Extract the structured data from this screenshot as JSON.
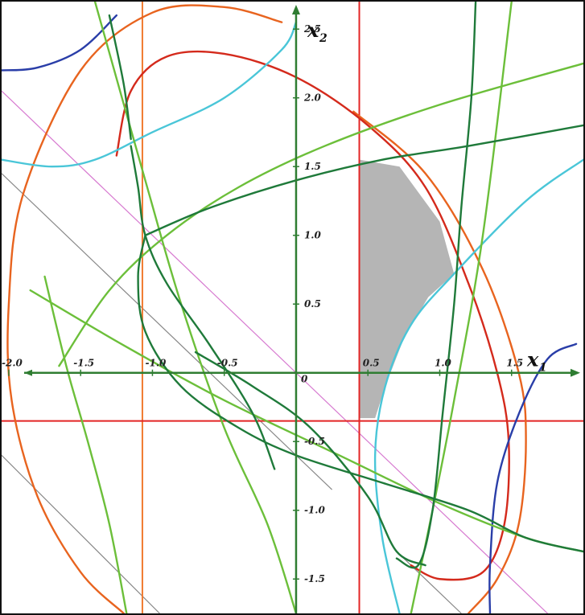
{
  "chart_data": {
    "type": "line",
    "xlabel": "x",
    "xlabel_sub": "1",
    "ylabel": "x",
    "ylabel_sub": "2",
    "xlim": [
      -2.05,
      2.0
    ],
    "ylim": [
      -1.75,
      2.7
    ],
    "x_ticks": [
      "-2.0",
      "-1.5",
      "-1.0",
      "-0.5",
      "0.5",
      "1.0",
      "1.5"
    ],
    "y_ticks": [
      "2.5",
      "2.0",
      "1.5",
      "1.0",
      "0.5",
      "-0.5",
      "-1.0",
      "-1.5"
    ],
    "origin_label": "0",
    "feasible_region": {
      "color": "#b5b5b5",
      "vertices": [
        [
          0.44,
          -0.33
        ],
        [
          0.44,
          1.55
        ],
        [
          0.72,
          1.5
        ],
        [
          1.0,
          1.1
        ],
        [
          1.1,
          0.72
        ],
        [
          0.92,
          0.55
        ],
        [
          0.75,
          0.25
        ],
        [
          0.62,
          -0.1
        ],
        [
          0.55,
          -0.33
        ]
      ]
    },
    "vertical_lines": [
      {
        "x": -1.07,
        "color": "#f07a30"
      },
      {
        "x": 0.44,
        "color": "#e32525"
      }
    ],
    "horizontal_lines": [
      {
        "y": -0.35,
        "color": "#e32525"
      }
    ],
    "diagonal_lines": [
      {
        "color": "#d77ad0",
        "points": [
          [
            -2.05,
            2.05
          ],
          [
            1.85,
            -1.85
          ]
        ]
      },
      {
        "color": "#888888",
        "points": [
          [
            -2.05,
            1.45
          ],
          [
            0.25,
            -0.85
          ]
        ]
      },
      {
        "color": "#888888",
        "points": [
          [
            -2.05,
            -0.6
          ],
          [
            -0.95,
            -1.75
          ]
        ]
      },
      {
        "color": "#888888",
        "points": [
          [
            0.7,
            -1.3
          ],
          [
            1.15,
            -1.75
          ]
        ]
      }
    ],
    "series": [
      {
        "color": "#e8641f",
        "points": [
          [
            -0.1,
            2.55
          ],
          [
            -0.5,
            2.66
          ],
          [
            -1.0,
            2.62
          ],
          [
            -1.5,
            2.2
          ],
          [
            -1.9,
            1.3
          ],
          [
            -2.0,
            0.5
          ],
          [
            -1.98,
            -0.2
          ],
          [
            -1.8,
            -0.9
          ],
          [
            -1.5,
            -1.45
          ],
          [
            -1.2,
            -1.75
          ]
        ]
      },
      {
        "color": "#e8641f",
        "points": [
          [
            0.4,
            1.9
          ],
          [
            0.9,
            1.45
          ],
          [
            1.3,
            0.75
          ],
          [
            1.55,
            0.0
          ],
          [
            1.6,
            -0.5
          ],
          [
            1.55,
            -1.1
          ],
          [
            1.4,
            -1.5
          ],
          [
            1.2,
            -1.75
          ]
        ]
      },
      {
        "color": "#d42a1c",
        "points": [
          [
            -1.25,
            1.58
          ],
          [
            -1.15,
            2.05
          ],
          [
            -0.9,
            2.3
          ],
          [
            -0.5,
            2.32
          ],
          [
            0.0,
            2.15
          ],
          [
            0.5,
            1.8
          ],
          [
            0.9,
            1.35
          ],
          [
            1.2,
            0.65
          ],
          [
            1.4,
            0.0
          ],
          [
            1.48,
            -0.5
          ],
          [
            1.45,
            -1.1
          ],
          [
            1.3,
            -1.45
          ],
          [
            1.0,
            -1.5
          ],
          [
            0.8,
            -1.4
          ]
        ]
      },
      {
        "color": "#2a3ea8",
        "points": [
          [
            -2.05,
            2.2
          ],
          [
            -1.8,
            2.22
          ],
          [
            -1.5,
            2.35
          ],
          [
            -1.25,
            2.6
          ]
        ]
      },
      {
        "color": "#2a3ea8",
        "points": [
          [
            1.95,
            0.21
          ],
          [
            1.75,
            0.1
          ],
          [
            1.55,
            -0.3
          ],
          [
            1.4,
            -0.8
          ],
          [
            1.35,
            -1.4
          ],
          [
            1.35,
            -1.75
          ]
        ]
      },
      {
        "color": "#4ac6d8",
        "points": [
          [
            -2.05,
            1.55
          ],
          [
            -1.7,
            1.5
          ],
          [
            -1.4,
            1.55
          ],
          [
            -1.0,
            1.75
          ],
          [
            -0.5,
            2.0
          ],
          [
            -0.1,
            2.35
          ],
          [
            0.0,
            2.55
          ]
        ]
      },
      {
        "color": "#4ac6d8",
        "points": [
          [
            2.0,
            1.55
          ],
          [
            1.6,
            1.25
          ],
          [
            1.1,
            0.72
          ],
          [
            0.8,
            0.35
          ],
          [
            0.62,
            -0.1
          ],
          [
            0.55,
            -0.6
          ],
          [
            0.6,
            -1.2
          ],
          [
            0.72,
            -1.75
          ]
        ]
      },
      {
        "color": "#6cbf3a",
        "points": [
          [
            -1.75,
            0.7
          ],
          [
            -1.6,
            0.05
          ],
          [
            -1.45,
            -0.5
          ],
          [
            -1.3,
            -1.1
          ],
          [
            -1.18,
            -1.75
          ]
        ]
      },
      {
        "color": "#6cbf3a",
        "points": [
          [
            -1.65,
            0.05
          ],
          [
            -1.3,
            0.6
          ],
          [
            -0.9,
            1.0
          ],
          [
            -0.4,
            1.35
          ],
          [
            0.2,
            1.65
          ],
          [
            1.0,
            1.95
          ],
          [
            2.0,
            2.25
          ]
        ]
      },
      {
        "color": "#6cbf3a",
        "points": [
          [
            -1.85,
            0.6
          ],
          [
            -1.2,
            0.2
          ],
          [
            -0.5,
            -0.2
          ],
          [
            0.3,
            -0.6
          ],
          [
            1.0,
            -0.95
          ],
          [
            1.6,
            -1.2
          ],
          [
            2.0,
            -1.3
          ]
        ]
      },
      {
        "color": "#6cbf3a",
        "points": [
          [
            -1.4,
            2.7
          ],
          [
            -1.05,
            1.4
          ],
          [
            -0.8,
            0.5
          ],
          [
            -0.5,
            -0.4
          ],
          [
            -0.2,
            -1.1
          ],
          [
            0.0,
            -1.75
          ]
        ]
      },
      {
        "color": "#6cbf3a",
        "points": [
          [
            1.5,
            2.7
          ],
          [
            1.3,
            1.0
          ],
          [
            1.1,
            -0.2
          ],
          [
            0.95,
            -1.0
          ],
          [
            0.8,
            -1.75
          ]
        ]
      },
      {
        "color": "#1f7a3a",
        "points": [
          [
            -1.05,
            1.0
          ],
          [
            -0.6,
            1.2
          ],
          [
            0.0,
            1.4
          ],
          [
            0.6,
            1.55
          ],
          [
            1.2,
            1.65
          ],
          [
            2.0,
            1.8
          ]
        ]
      },
      {
        "color": "#1f7a3a",
        "points": [
          [
            -1.05,
            1.0
          ],
          [
            -1.1,
            0.7
          ],
          [
            -1.05,
            0.3
          ],
          [
            -0.8,
            -0.1
          ],
          [
            -0.4,
            -0.4
          ],
          [
            0.0,
            -0.6
          ],
          [
            0.6,
            -0.8
          ],
          [
            1.2,
            -1.0
          ],
          [
            1.6,
            -1.2
          ],
          [
            2.0,
            -1.3
          ]
        ]
      },
      {
        "color": "#1f7a3a",
        "points": [
          [
            -1.15,
            1.65
          ],
          [
            -1.1,
            1.35
          ],
          [
            -1.05,
            1.0
          ],
          [
            -0.9,
            0.65
          ],
          [
            -0.6,
            0.2
          ],
          [
            -0.3,
            -0.3
          ],
          [
            -0.15,
            -0.7
          ]
        ]
      },
      {
        "color": "#1f7a3a",
        "points": [
          [
            -1.3,
            2.6
          ],
          [
            -1.2,
            2.1
          ],
          [
            -1.15,
            1.7
          ]
        ]
      },
      {
        "color": "#1f7a3a",
        "points": [
          [
            -0.7,
            0.15
          ],
          [
            -0.3,
            -0.1
          ],
          [
            0.1,
            -0.4
          ],
          [
            0.5,
            -0.9
          ],
          [
            0.7,
            -1.3
          ],
          [
            0.9,
            -1.4
          ]
        ]
      },
      {
        "color": "#1f7a3a",
        "points": [
          [
            1.25,
            2.7
          ],
          [
            1.22,
            2.0
          ],
          [
            1.15,
            1.2
          ],
          [
            1.1,
            0.5
          ],
          [
            1.02,
            -0.3
          ],
          [
            0.95,
            -1.0
          ],
          [
            0.85,
            -1.4
          ],
          [
            0.7,
            -1.35
          ]
        ]
      }
    ]
  }
}
